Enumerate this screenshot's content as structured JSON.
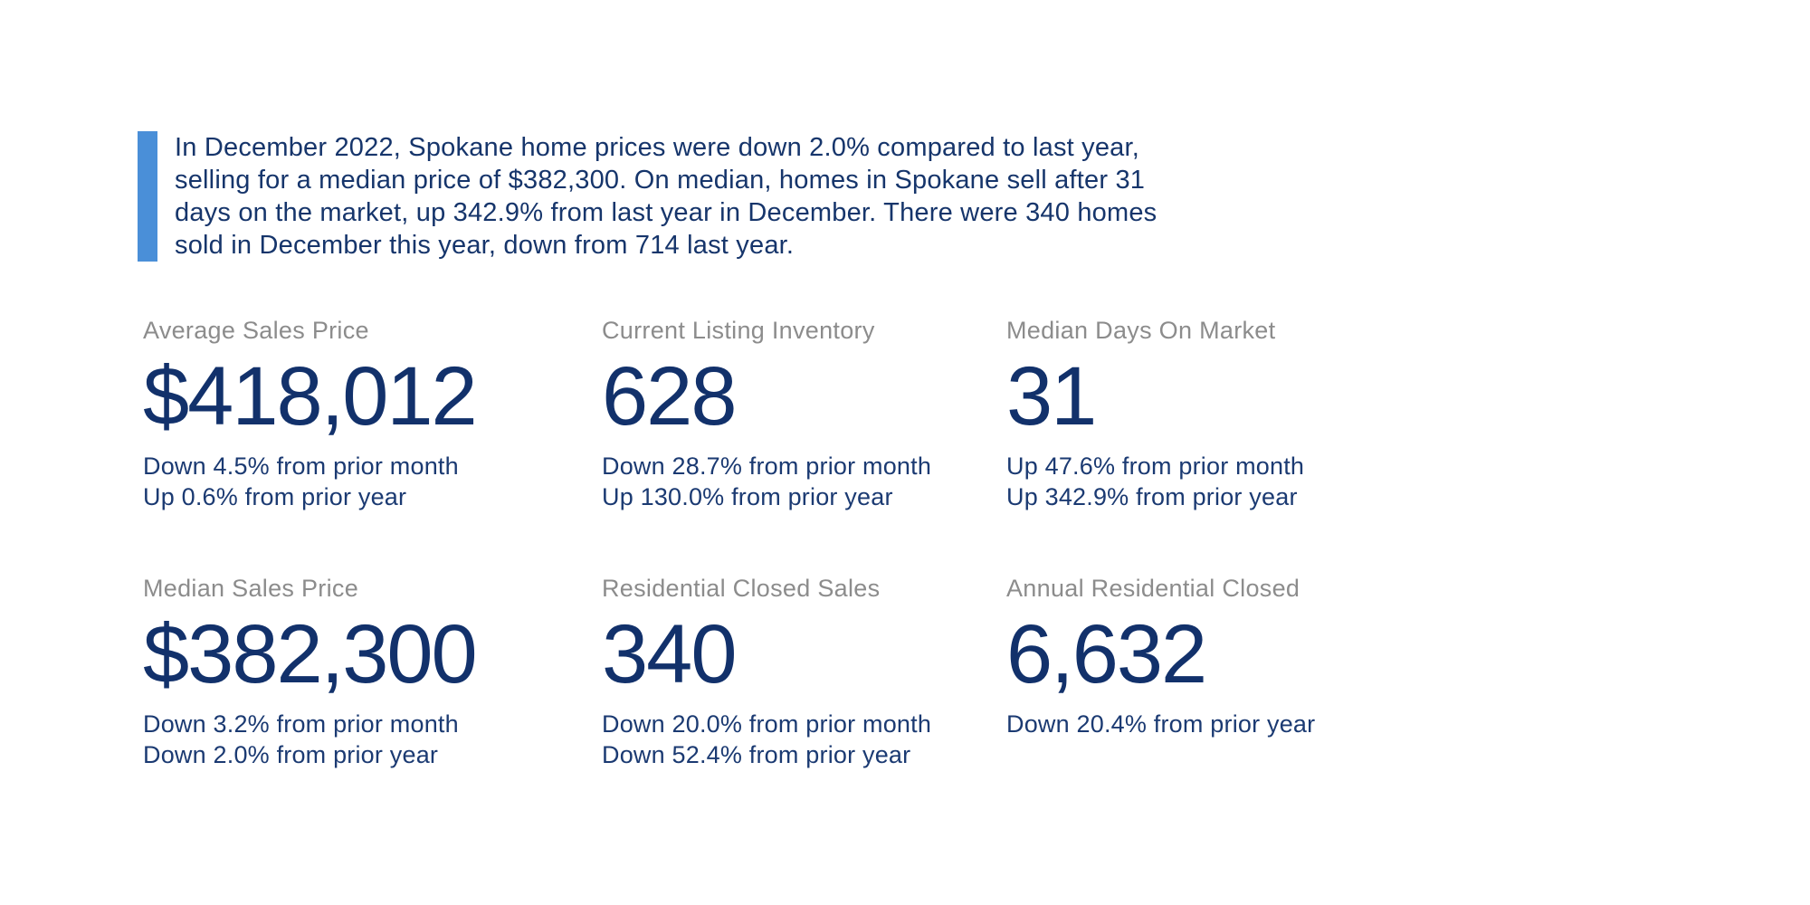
{
  "colors": {
    "background": "#ffffff",
    "accent_bar_blue": "#4a8fd8",
    "summary_text_navy": "#16356b",
    "stat_value_navy": "#12316b",
    "stat_delta_navy": "#1b3a72",
    "stat_title_gray": "#8c8c8c"
  },
  "summary": {
    "lines": [
      "In December 2022, Spokane home prices were down 2.0% compared to last year,",
      "selling for a median price of $382,300. On median, homes in Spokane sell after 31",
      "days on the market, up 342.9% from last year in December. There were 340 homes",
      "sold in December this year, down from 714 last year."
    ]
  },
  "stats": [
    {
      "title": "Average Sales Price",
      "value": "$418,012",
      "deltas": [
        "Down 4.5% from prior month",
        "Up 0.6% from prior year"
      ]
    },
    {
      "title": "Current Listing Inventory",
      "value": "628",
      "deltas": [
        "Down 28.7% from prior month",
        "Up 130.0% from prior year"
      ]
    },
    {
      "title": "Median Days On Market",
      "value": "31",
      "deltas": [
        "Up 47.6% from prior month",
        "Up 342.9% from prior year"
      ]
    },
    {
      "title": "Median Sales Price",
      "value": "$382,300",
      "deltas": [
        "Down 3.2% from prior month",
        "Down 2.0% from prior year"
      ]
    },
    {
      "title": "Residential Closed Sales",
      "value": "340",
      "deltas": [
        "Down 20.0% from prior month",
        "Down 52.4% from prior year"
      ]
    },
    {
      "title": "Annual Residential Closed",
      "value": "6,632",
      "deltas": [
        "Down 20.4% from prior year"
      ]
    }
  ]
}
